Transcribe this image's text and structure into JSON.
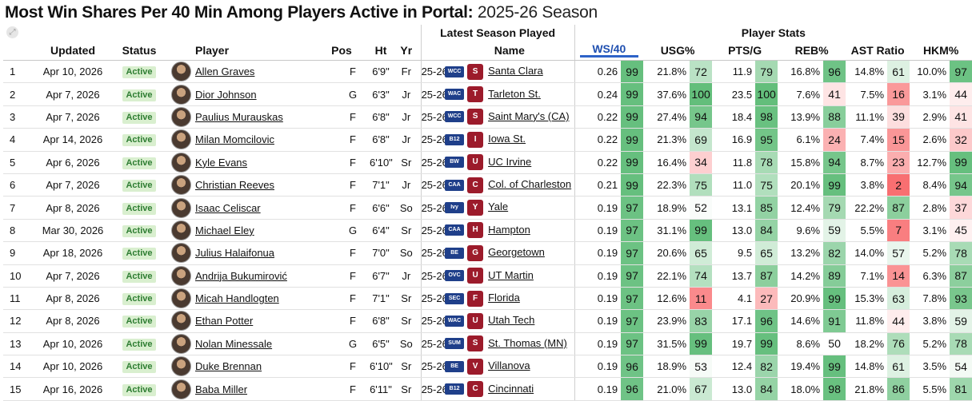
{
  "title": {
    "main": "Most Win Shares Per 40 Min Among Players Active in Portal:",
    "sub": "2025-26 Season"
  },
  "top_button": {
    "icon": "arrows-icon"
  },
  "group_headers": {
    "latest_season": "Latest Season Played",
    "player_stats": "Player Stats"
  },
  "columns": {
    "updated": "Updated",
    "status": "Status",
    "player": "Player",
    "pos": "Pos",
    "ht": "Ht",
    "yr": "Yr",
    "name": "Name",
    "ws40": "WS/40",
    "usg": "USG%",
    "ptsg": "PTS/G",
    "reb": "REB%",
    "ast": "AST Ratio",
    "hkm": "HKM%"
  },
  "colors": {
    "pct_high": "#63be7b",
    "pct_mid": "#ffffff",
    "pct_low": "#f8696b",
    "active_badge_bg": "#d9efcf",
    "active_badge_text": "#2e7d32",
    "sort_underline": "#2d62c8"
  },
  "chart_data": {
    "type": "table",
    "title": "Most Win Shares Per 40 Min Among Players Active in Portal: 2025-26 Season",
    "rows": [
      {
        "rank": "1",
        "updated": "Apr 10, 2026",
        "status": "Active",
        "player": "Allen Graves",
        "pos": "F",
        "ht": "6'9\"",
        "yr": "Fr",
        "season": "25-26",
        "conference": "WCC",
        "team": "Santa Clara",
        "ws40": "0.26",
        "ws40_pct": 99,
        "usg": "21.8%",
        "usg_pct": 72,
        "ptsg": "11.9",
        "ptsg_pct": 79,
        "reb": "16.8%",
        "reb_pct": 96,
        "ast": "14.8%",
        "ast_pct": 61,
        "hkm": "10.0%",
        "hkm_pct": 97
      },
      {
        "rank": "2",
        "updated": "Apr 7, 2026",
        "status": "Active",
        "player": "Dior Johnson",
        "pos": "G",
        "ht": "6'3\"",
        "yr": "Jr",
        "season": "25-26",
        "conference": "WAC",
        "team": "Tarleton St.",
        "ws40": "0.24",
        "ws40_pct": 99,
        "usg": "37.6%",
        "usg_pct": 100,
        "ptsg": "23.5",
        "ptsg_pct": 100,
        "reb": "7.6%",
        "reb_pct": 41,
        "ast": "7.5%",
        "ast_pct": 16,
        "hkm": "3.1%",
        "hkm_pct": 44
      },
      {
        "rank": "3",
        "updated": "Apr 7, 2026",
        "status": "Active",
        "player": "Paulius Murauskas",
        "pos": "F",
        "ht": "6'8\"",
        "yr": "Jr",
        "season": "25-26",
        "conference": "WCC",
        "team": "Saint Mary's (CA)",
        "ws40": "0.22",
        "ws40_pct": 99,
        "usg": "27.4%",
        "usg_pct": 94,
        "ptsg": "18.4",
        "ptsg_pct": 98,
        "reb": "13.9%",
        "reb_pct": 88,
        "ast": "11.1%",
        "ast_pct": 39,
        "hkm": "2.9%",
        "hkm_pct": 41
      },
      {
        "rank": "4",
        "updated": "Apr 14, 2026",
        "status": "Active",
        "player": "Milan Momcilovic",
        "pos": "F",
        "ht": "6'8\"",
        "yr": "Jr",
        "season": "25-26",
        "conference": "B12",
        "team": "Iowa St.",
        "ws40": "0.22",
        "ws40_pct": 99,
        "usg": "21.3%",
        "usg_pct": 69,
        "ptsg": "16.9",
        "ptsg_pct": 95,
        "reb": "6.1%",
        "reb_pct": 24,
        "ast": "7.4%",
        "ast_pct": 15,
        "hkm": "2.6%",
        "hkm_pct": 32
      },
      {
        "rank": "5",
        "updated": "Apr 6, 2026",
        "status": "Active",
        "player": "Kyle Evans",
        "pos": "F",
        "ht": "6'10\"",
        "yr": "Sr",
        "season": "25-26",
        "conference": "BW",
        "team": "UC Irvine",
        "ws40": "0.22",
        "ws40_pct": 99,
        "usg": "16.4%",
        "usg_pct": 34,
        "ptsg": "11.8",
        "ptsg_pct": 78,
        "reb": "15.8%",
        "reb_pct": 94,
        "ast": "8.7%",
        "ast_pct": 23,
        "hkm": "12.7%",
        "hkm_pct": 99
      },
      {
        "rank": "6",
        "updated": "Apr 7, 2026",
        "status": "Active",
        "player": "Christian Reeves",
        "pos": "F",
        "ht": "7'1\"",
        "yr": "Jr",
        "season": "25-26",
        "conference": "CAA",
        "team": "Col. of Charleston",
        "ws40": "0.21",
        "ws40_pct": 99,
        "usg": "22.3%",
        "usg_pct": 75,
        "ptsg": "11.0",
        "ptsg_pct": 75,
        "reb": "20.1%",
        "reb_pct": 99,
        "ast": "3.8%",
        "ast_pct": 2,
        "hkm": "8.4%",
        "hkm_pct": 94
      },
      {
        "rank": "7",
        "updated": "Apr 8, 2026",
        "status": "Active",
        "player": "Isaac Celiscar",
        "pos": "F",
        "ht": "6'6\"",
        "yr": "So",
        "season": "25-26",
        "conference": "Ivy",
        "team": "Yale",
        "ws40": "0.19",
        "ws40_pct": 97,
        "usg": "18.9%",
        "usg_pct": 52,
        "ptsg": "13.1",
        "ptsg_pct": 85,
        "reb": "12.4%",
        "reb_pct": 79,
        "ast": "22.2%",
        "ast_pct": 87,
        "hkm": "2.8%",
        "hkm_pct": 37
      },
      {
        "rank": "8",
        "updated": "Mar 30, 2026",
        "status": "Active",
        "player": "Michael Eley",
        "pos": "G",
        "ht": "6'4\"",
        "yr": "Sr",
        "season": "25-26",
        "conference": "CAA",
        "team": "Hampton",
        "ws40": "0.19",
        "ws40_pct": 97,
        "usg": "31.1%",
        "usg_pct": 99,
        "ptsg": "13.0",
        "ptsg_pct": 84,
        "reb": "9.6%",
        "reb_pct": 59,
        "ast": "5.5%",
        "ast_pct": 7,
        "hkm": "3.1%",
        "hkm_pct": 45
      },
      {
        "rank": "9",
        "updated": "Apr 18, 2026",
        "status": "Active",
        "player": "Julius Halaifonua",
        "pos": "F",
        "ht": "7'0\"",
        "yr": "So",
        "season": "25-26",
        "conference": "BE",
        "team": "Georgetown",
        "ws40": "0.19",
        "ws40_pct": 97,
        "usg": "20.6%",
        "usg_pct": 65,
        "ptsg": "9.5",
        "ptsg_pct": 65,
        "reb": "13.2%",
        "reb_pct": 82,
        "ast": "14.0%",
        "ast_pct": 57,
        "hkm": "5.2%",
        "hkm_pct": 78
      },
      {
        "rank": "10",
        "updated": "Apr 7, 2026",
        "status": "Active",
        "player": "Andrija Bukumirović",
        "pos": "F",
        "ht": "6'7\"",
        "yr": "Jr",
        "season": "25-26",
        "conference": "OVC",
        "team": "UT Martin",
        "ws40": "0.19",
        "ws40_pct": 97,
        "usg": "22.1%",
        "usg_pct": 74,
        "ptsg": "13.7",
        "ptsg_pct": 87,
        "reb": "14.2%",
        "reb_pct": 89,
        "ast": "7.1%",
        "ast_pct": 14,
        "hkm": "6.3%",
        "hkm_pct": 87
      },
      {
        "rank": "11",
        "updated": "Apr 8, 2026",
        "status": "Active",
        "player": "Micah Handlogten",
        "pos": "F",
        "ht": "7'1\"",
        "yr": "Sr",
        "season": "25-26",
        "conference": "SEC",
        "team": "Florida",
        "ws40": "0.19",
        "ws40_pct": 97,
        "usg": "12.6%",
        "usg_pct": 11,
        "ptsg": "4.1",
        "ptsg_pct": 27,
        "reb": "20.9%",
        "reb_pct": 99,
        "ast": "15.3%",
        "ast_pct": 63,
        "hkm": "7.8%",
        "hkm_pct": 93
      },
      {
        "rank": "12",
        "updated": "Apr 8, 2026",
        "status": "Active",
        "player": "Ethan Potter",
        "pos": "F",
        "ht": "6'8\"",
        "yr": "Sr",
        "season": "25-26",
        "conference": "WAC",
        "team": "Utah Tech",
        "ws40": "0.19",
        "ws40_pct": 97,
        "usg": "23.9%",
        "usg_pct": 83,
        "ptsg": "17.1",
        "ptsg_pct": 96,
        "reb": "14.6%",
        "reb_pct": 91,
        "ast": "11.8%",
        "ast_pct": 44,
        "hkm": "3.8%",
        "hkm_pct": 59
      },
      {
        "rank": "13",
        "updated": "Apr 10, 2026",
        "status": "Active",
        "player": "Nolan Minessale",
        "pos": "G",
        "ht": "6'5\"",
        "yr": "So",
        "season": "25-26",
        "conference": "SUM",
        "team": "St. Thomas (MN)",
        "ws40": "0.19",
        "ws40_pct": 97,
        "usg": "31.5%",
        "usg_pct": 99,
        "ptsg": "19.7",
        "ptsg_pct": 99,
        "reb": "8.6%",
        "reb_pct": 50,
        "ast": "18.2%",
        "ast_pct": 76,
        "hkm": "5.2%",
        "hkm_pct": 78
      },
      {
        "rank": "14",
        "updated": "Apr 10, 2026",
        "status": "Active",
        "player": "Duke Brennan",
        "pos": "F",
        "ht": "6'10\"",
        "yr": "Sr",
        "season": "25-26",
        "conference": "BE",
        "team": "Villanova",
        "ws40": "0.19",
        "ws40_pct": 96,
        "usg": "18.9%",
        "usg_pct": 53,
        "ptsg": "12.4",
        "ptsg_pct": 82,
        "reb": "19.4%",
        "reb_pct": 99,
        "ast": "14.8%",
        "ast_pct": 61,
        "hkm": "3.5%",
        "hkm_pct": 54
      },
      {
        "rank": "15",
        "updated": "Apr 16, 2026",
        "status": "Active",
        "player": "Baba Miller",
        "pos": "F",
        "ht": "6'11\"",
        "yr": "Sr",
        "season": "25-26",
        "conference": "B12",
        "team": "Cincinnati",
        "ws40": "0.19",
        "ws40_pct": 96,
        "usg": "21.0%",
        "usg_pct": 67,
        "ptsg": "13.0",
        "ptsg_pct": 84,
        "reb": "18.0%",
        "reb_pct": 98,
        "ast": "21.8%",
        "ast_pct": 86,
        "hkm": "5.5%",
        "hkm_pct": 81
      }
    ]
  }
}
